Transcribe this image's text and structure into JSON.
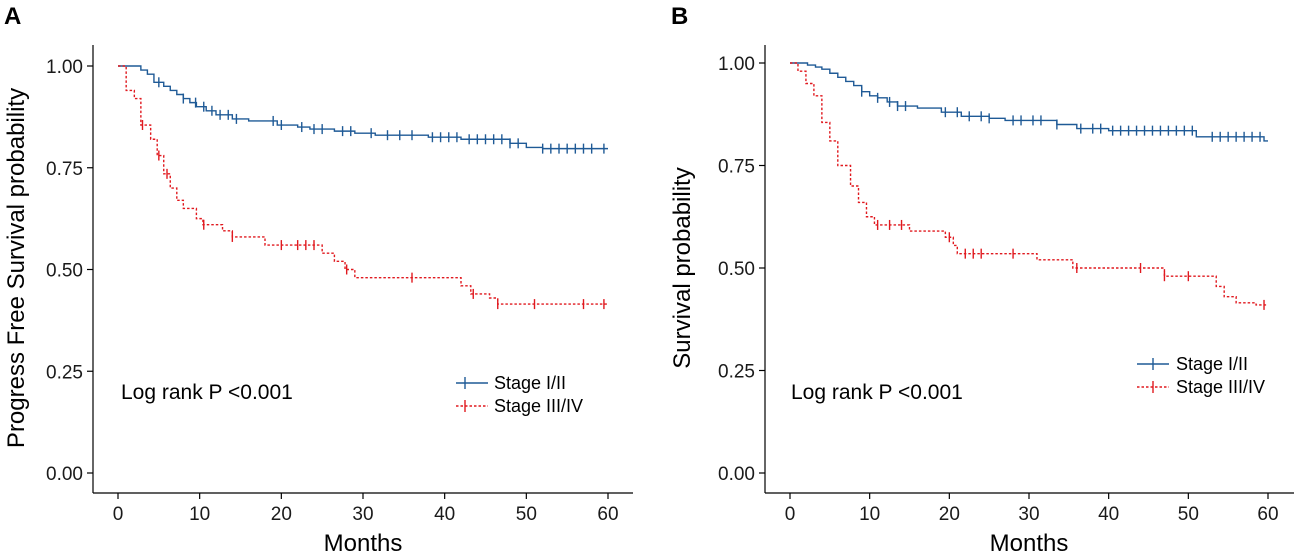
{
  "colors": {
    "stage_early": "#1f5a96",
    "stage_late": "#e0191f",
    "axis": "#000000"
  },
  "chart_data": [
    {
      "panel_label": "A",
      "type": "line",
      "subtype": "kaplan-meier step curve with censor marks",
      "xlabel": "Months",
      "ylabel": "Progress Free Survival probability",
      "xlim": [
        0,
        60
      ],
      "ylim": [
        0,
        1
      ],
      "x_ticks": [
        "0",
        "10",
        "20",
        "30",
        "40",
        "50",
        "60"
      ],
      "y_ticks": [
        "0.00",
        "0.25",
        "0.50",
        "0.75",
        "1.00"
      ],
      "grid": false,
      "annotation": "Log rank P <0.001",
      "legend_position": "bottom-right",
      "series": [
        {
          "name": "Stage I/II",
          "line_style": "solid",
          "steps": [
            [
              0,
              1.0
            ],
            [
              2.8,
              0.99
            ],
            [
              3.6,
              0.98
            ],
            [
              4.4,
              0.96
            ],
            [
              5.6,
              0.95
            ],
            [
              6.4,
              0.94
            ],
            [
              7.2,
              0.93
            ],
            [
              8.0,
              0.92
            ],
            [
              8.8,
              0.91
            ],
            [
              9.6,
              0.9
            ],
            [
              10.8,
              0.89
            ],
            [
              12.0,
              0.88
            ],
            [
              14.0,
              0.87
            ],
            [
              16.0,
              0.865
            ],
            [
              19.5,
              0.855
            ],
            [
              22.0,
              0.85
            ],
            [
              23.5,
              0.845
            ],
            [
              26.5,
              0.84
            ],
            [
              29.0,
              0.835
            ],
            [
              31.5,
              0.83
            ],
            [
              38.0,
              0.825
            ],
            [
              42.0,
              0.82
            ],
            [
              48.0,
              0.81
            ],
            [
              50.0,
              0.8
            ],
            [
              52.0,
              0.797
            ]
          ],
          "censor_x": [
            5.0,
            8.0,
            9.5,
            10.5,
            11.5,
            12.5,
            13.5,
            14.5,
            19.0,
            20.0,
            22.5,
            24.0,
            25.0,
            27.5,
            28.5,
            31.0,
            33.0,
            34.5,
            36.0,
            38.5,
            39.5,
            40.5,
            41.5,
            43.0,
            44.0,
            45.0,
            46.0,
            47.0,
            48.0,
            49.0,
            52.0,
            53.0,
            54.0,
            55.0,
            56.0,
            57.0,
            58.0,
            59.5
          ],
          "end_x": 60
        },
        {
          "name": "Stage III/IV",
          "line_style": "dotted",
          "steps": [
            [
              0,
              1.0
            ],
            [
              1.0,
              0.94
            ],
            [
              2.0,
              0.92
            ],
            [
              2.8,
              0.855
            ],
            [
              4.0,
              0.82
            ],
            [
              4.8,
              0.78
            ],
            [
              5.6,
              0.735
            ],
            [
              6.4,
              0.7
            ],
            [
              7.2,
              0.67
            ],
            [
              8.0,
              0.65
            ],
            [
              9.6,
              0.625
            ],
            [
              10.4,
              0.61
            ],
            [
              12.8,
              0.595
            ],
            [
              14.0,
              0.58
            ],
            [
              18.0,
              0.56
            ],
            [
              25.0,
              0.54
            ],
            [
              26.5,
              0.52
            ],
            [
              27.8,
              0.5
            ],
            [
              29.0,
              0.48
            ],
            [
              42.0,
              0.46
            ],
            [
              43.2,
              0.44
            ],
            [
              45.5,
              0.43
            ],
            [
              46.5,
              0.415
            ]
          ],
          "censor_x": [
            3.0,
            5.0,
            6.0,
            10.5,
            14.0,
            20.0,
            22.0,
            23.0,
            24.0,
            28.0,
            36.0,
            43.5,
            46.5,
            51.0,
            57.0,
            59.5
          ],
          "end_x": 60
        }
      ]
    },
    {
      "panel_label": "B",
      "type": "line",
      "subtype": "kaplan-meier step curve with censor marks",
      "xlabel": "Months",
      "ylabel": "Survival probability",
      "xlim": [
        0,
        60
      ],
      "ylim": [
        0,
        1
      ],
      "x_ticks": [
        "0",
        "10",
        "20",
        "30",
        "40",
        "50",
        "60"
      ],
      "y_ticks": [
        "0.00",
        "0.25",
        "0.50",
        "0.75",
        "1.00"
      ],
      "grid": false,
      "annotation": "Log rank P <0.001",
      "legend_position": "bottom-right",
      "series": [
        {
          "name": "Stage I/II",
          "line_style": "solid",
          "steps": [
            [
              0,
              1.0
            ],
            [
              2.2,
              0.995
            ],
            [
              3.2,
              0.99
            ],
            [
              4.0,
              0.985
            ],
            [
              5.0,
              0.975
            ],
            [
              6.0,
              0.965
            ],
            [
              7.0,
              0.955
            ],
            [
              8.0,
              0.945
            ],
            [
              9.0,
              0.93
            ],
            [
              10.0,
              0.92
            ],
            [
              11.0,
              0.915
            ],
            [
              12.2,
              0.905
            ],
            [
              13.5,
              0.895
            ],
            [
              16.0,
              0.89
            ],
            [
              19.0,
              0.88
            ],
            [
              21.5,
              0.87
            ],
            [
              25.0,
              0.865
            ],
            [
              27.0,
              0.86
            ],
            [
              33.5,
              0.85
            ],
            [
              36.0,
              0.84
            ],
            [
              40.0,
              0.835
            ],
            [
              51.0,
              0.82
            ],
            [
              59.5,
              0.81
            ]
          ],
          "censor_x": [
            9.0,
            11.0,
            12.5,
            13.5,
            14.5,
            19.5,
            21.0,
            22.5,
            24.0,
            25.0,
            28.0,
            29.0,
            30.5,
            31.5,
            33.5,
            36.5,
            38.0,
            39.0,
            40.5,
            41.5,
            42.5,
            43.5,
            44.5,
            45.5,
            46.5,
            47.5,
            48.5,
            49.5,
            50.5,
            53.0,
            54.0,
            55.0,
            56.0,
            57.0,
            58.0,
            59.0
          ],
          "end_x": 60
        },
        {
          "name": "Stage III/IV",
          "line_style": "dotted",
          "steps": [
            [
              0,
              1.0
            ],
            [
              1.0,
              0.98
            ],
            [
              2.0,
              0.95
            ],
            [
              3.0,
              0.92
            ],
            [
              4.0,
              0.855
            ],
            [
              5.0,
              0.81
            ],
            [
              6.0,
              0.75
            ],
            [
              7.6,
              0.7
            ],
            [
              8.6,
              0.66
            ],
            [
              9.6,
              0.625
            ],
            [
              10.6,
              0.605
            ],
            [
              15.0,
              0.59
            ],
            [
              19.5,
              0.575
            ],
            [
              20.5,
              0.555
            ],
            [
              21.0,
              0.535
            ],
            [
              26.0,
              0.535
            ],
            [
              31.0,
              0.52
            ],
            [
              35.5,
              0.5
            ],
            [
              47.0,
              0.48
            ],
            [
              53.5,
              0.455
            ],
            [
              54.5,
              0.43
            ],
            [
              56.0,
              0.415
            ],
            [
              58.5,
              0.41
            ]
          ],
          "censor_x": [
            11.0,
            12.5,
            14.0,
            20.0,
            22.0,
            23.0,
            24.0,
            28.0,
            36.0,
            44.0,
            47.0,
            50.0,
            59.5
          ],
          "end_x": 60
        }
      ]
    }
  ]
}
